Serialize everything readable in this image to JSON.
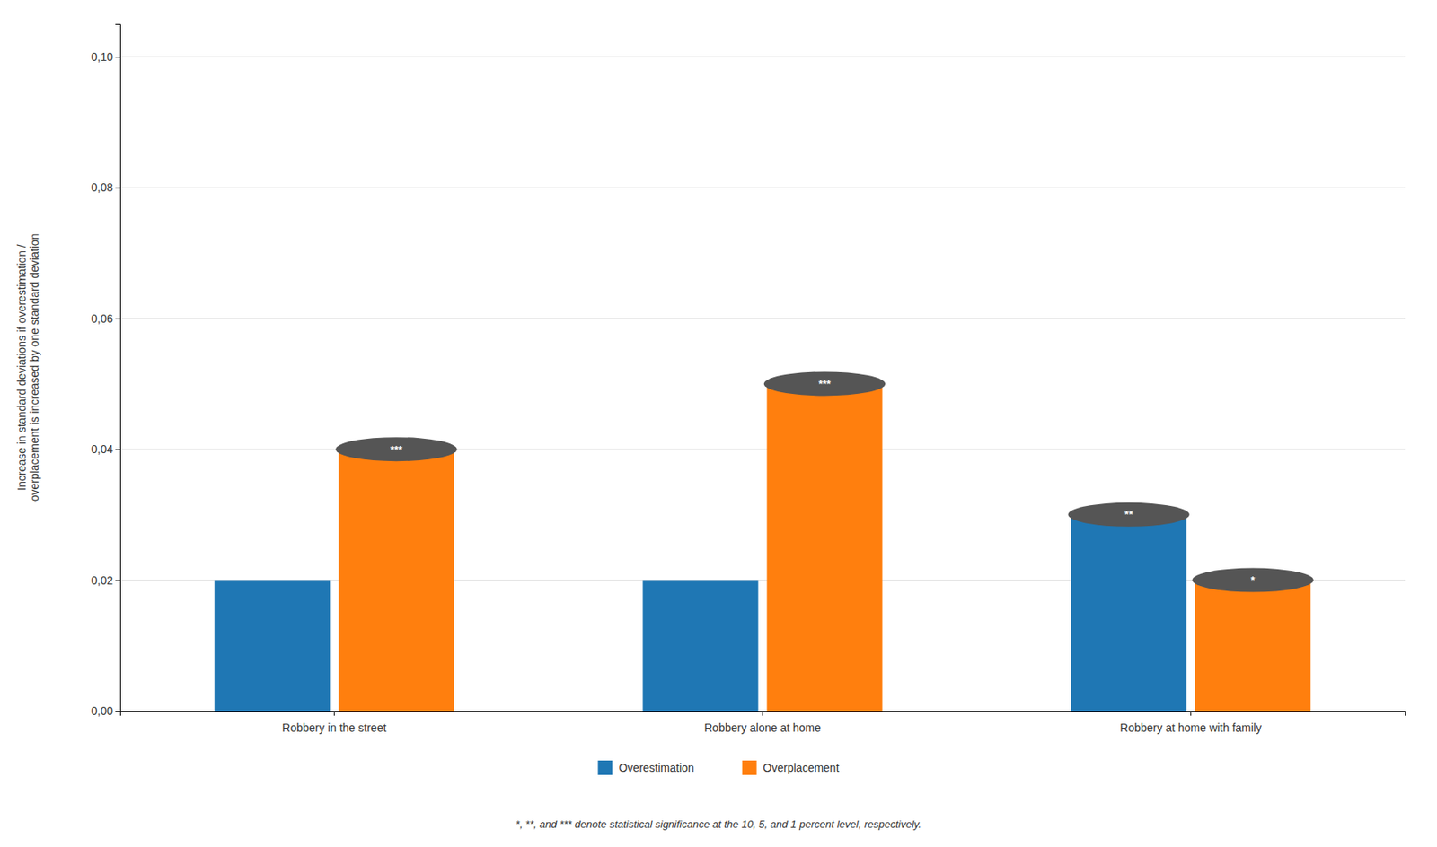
{
  "chart_data": {
    "type": "bar",
    "categories": [
      "Robbery in the street",
      "Robbery alone at home",
      "Robbery at home with family"
    ],
    "series": [
      {
        "name": "Overestimation",
        "values": [
          0.02,
          0.02,
          0.03
        ]
      },
      {
        "name": "Overplacement",
        "values": [
          0.04,
          0.05,
          0.02
        ]
      }
    ],
    "ylabel": "Increase in standard deviations if overestimation /\noverplacement is increased by one standard deviation",
    "ylim": [
      0.0,
      0.105
    ],
    "yticks": [
      {
        "value": 0.0,
        "label": "0,00"
      },
      {
        "value": 0.02,
        "label": "0,02"
      },
      {
        "value": 0.04,
        "label": "0,04"
      },
      {
        "value": 0.06,
        "label": "0,06"
      },
      {
        "value": 0.08,
        "label": "0,08"
      },
      {
        "value": 0.1,
        "label": "0,10"
      }
    ],
    "grid": true,
    "legend": "bottom",
    "annotations": [
      {
        "text": "***",
        "series": "Overplacement",
        "category": "Robbery in the street"
      },
      {
        "text": "***",
        "series": "Overplacement",
        "category": "Robbery alone at home"
      },
      {
        "text": "**",
        "series": "Overestimation",
        "category": "Robbery at home with family"
      },
      {
        "text": "*",
        "series": "Overplacement",
        "category": "Robbery at home with family"
      }
    ],
    "footnote": "*, **, and *** denote statistical significance at the 10, 5, and 1 percent level, respectively."
  }
}
